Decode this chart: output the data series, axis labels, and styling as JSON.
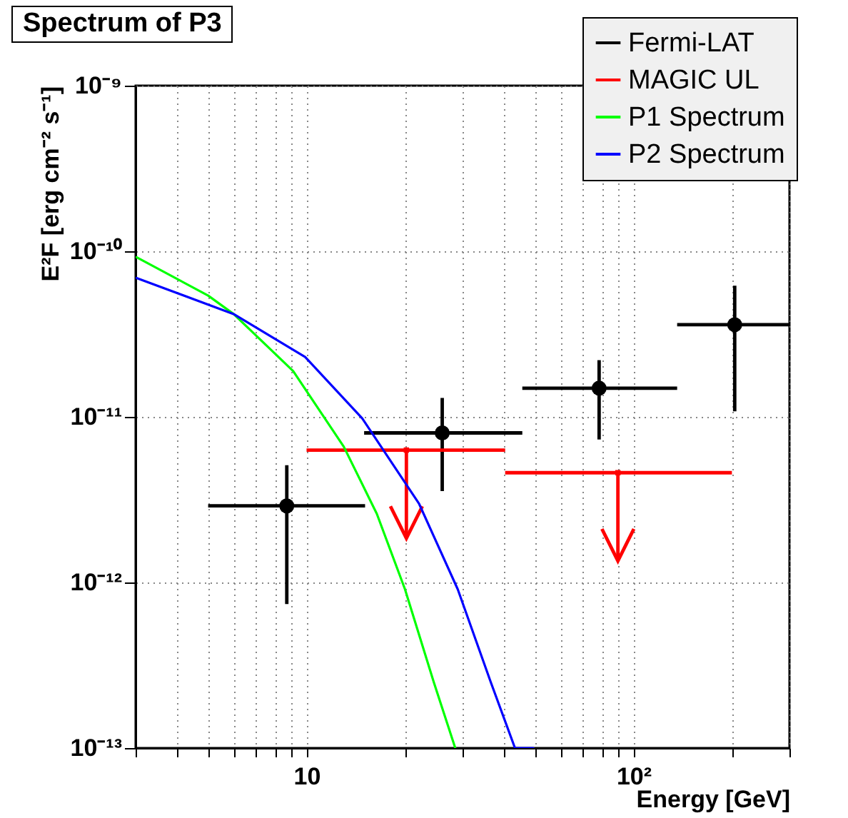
{
  "chart_data": {
    "type": "scatter",
    "title": "Spectrum of P3",
    "xlabel": "Energy [GeV]",
    "ylabel": "E²F [erg cm⁻² s⁻¹]",
    "log": "xy",
    "grid": true,
    "legend": "top right",
    "xlim": [
      3,
      300
    ],
    "ylim": [
      1e-13,
      1e-09
    ],
    "xticks": [
      {
        "value": 3,
        "label": null
      },
      {
        "value": 4,
        "label": null
      },
      {
        "value": 5,
        "label": null
      },
      {
        "value": 6,
        "label": null
      },
      {
        "value": 7,
        "label": null
      },
      {
        "value": 8,
        "label": null
      },
      {
        "value": 9,
        "label": null
      },
      10,
      {
        "value": 20,
        "label": null
      },
      {
        "value": 30,
        "label": null
      },
      {
        "value": 40,
        "label": null
      },
      {
        "value": 50,
        "label": null
      },
      {
        "value": 60,
        "label": null
      },
      {
        "value": 70,
        "label": null
      },
      {
        "value": 80,
        "label": null
      },
      {
        "value": 90,
        "label": null
      },
      {
        "value": 100,
        "label": "10²"
      },
      {
        "value": 200,
        "label": null
      },
      {
        "value": 300,
        "label": null
      }
    ],
    "yticks": [
      {
        "value": 1e-13,
        "label": "10⁻¹³"
      },
      {
        "value": 1e-12,
        "label": "10⁻¹²"
      },
      {
        "value": 1e-11,
        "label": "10⁻¹¹"
      },
      {
        "value": 1e-10,
        "label": "10⁻¹⁰"
      },
      {
        "value": 1e-09,
        "label": "10⁻⁹"
      }
    ],
    "series": [
      {
        "name": "Fermi-LAT",
        "color": "#000000",
        "marker": "circle",
        "x": [
          8.7,
          26,
          78.5,
          204
        ],
        "values": [
          2.9e-12,
          8e-12,
          1.49e-11,
          3.6e-11
        ],
        "xerrors": [
          [
            5.0,
            15.1
          ],
          [
            15,
            45.7
          ],
          [
            45.7,
            136
          ],
          [
            136,
            300
          ]
        ],
        "errors": [
          [
            7.4e-13,
            5.1e-12
          ],
          [
            3.56e-12,
            1.3e-11
          ],
          [
            7.3e-12,
            2.2e-11
          ],
          [
            1.08e-11,
            6.2e-11
          ]
        ]
      },
      {
        "name": "MAGIC UL",
        "color": "#ff0000",
        "x": [
          20.2,
          89.6
        ],
        "values": [
          6.3e-12,
          4.6e-12
        ],
        "xerrors": [
          [
            10,
            40.5
          ],
          [
            40.5,
            200
          ]
        ],
        "errors": [
          [
            1.85e-12,
            6.3e-12
          ],
          [
            1.35e-12,
            4.6e-12
          ]
        ]
      },
      {
        "name": "P1 Spectrum",
        "type": "line",
        "color": "#00ff00",
        "x": [
          3.02,
          5.0,
          5.98,
          9.1,
          13.0,
          16.4,
          20.0,
          24.5,
          28.5
        ],
        "values": [
          9.2e-11,
          5.4e-11,
          4.18e-11,
          1.89e-11,
          6.6e-12,
          2.6e-12,
          9.1e-13,
          2.5e-13,
          1e-13
        ]
      },
      {
        "name": "P2 Spectrum",
        "type": "line",
        "color": "#0000ff",
        "x": [
          3.02,
          5.98,
          9.9,
          14.8,
          22.1,
          29.0,
          36.6,
          43.4,
          49.4
        ],
        "values": [
          6.9e-11,
          4.18e-11,
          2.3e-11,
          9.8e-12,
          2.98e-12,
          9.1e-13,
          2.5e-13,
          1e-13,
          1e-13
        ]
      }
    ]
  }
}
